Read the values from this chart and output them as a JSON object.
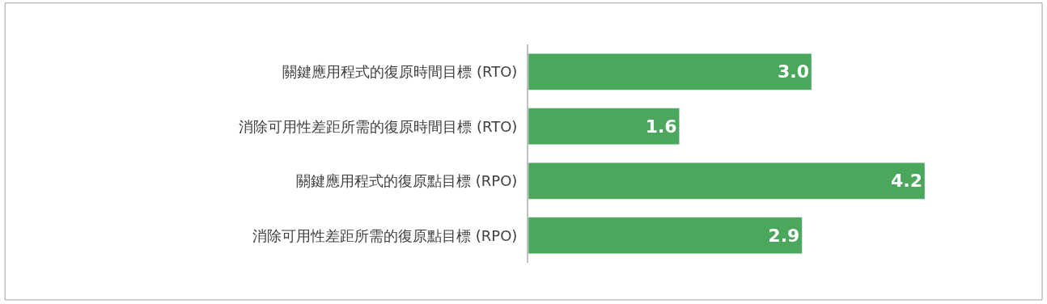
{
  "chart_data": {
    "type": "bar",
    "orientation": "horizontal",
    "categories": [
      "關鍵應用程式的復原時間目標 (RTO)",
      "消除可用性差距所需的復原時間目標 (RTO)",
      "關鍵應用程式的復原點目標 (RPO)",
      "消除可用性差距所需的復原點目標 (RPO)"
    ],
    "values": [
      3.0,
      1.6,
      4.2,
      2.9
    ],
    "value_labels": [
      "3.0",
      "1.6",
      "4.2",
      "2.9"
    ],
    "color": "#4aa75b"
  }
}
